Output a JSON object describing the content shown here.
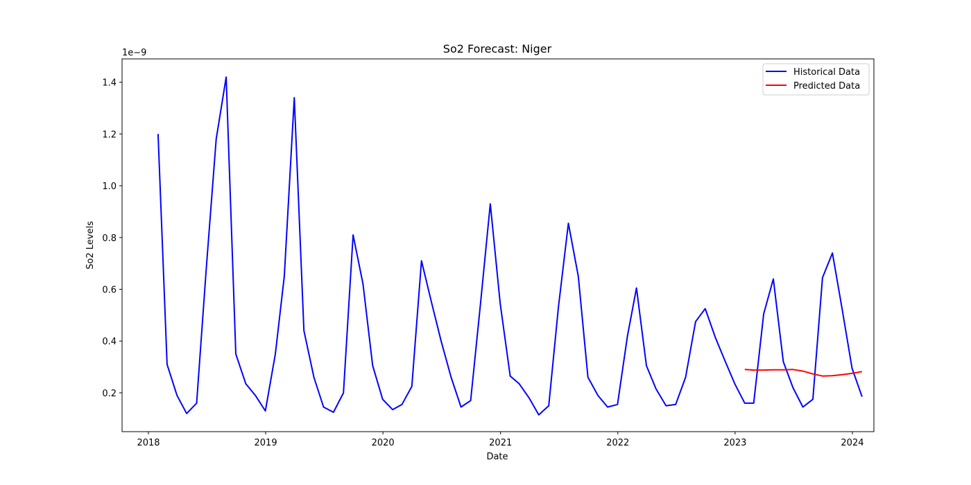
{
  "chart_data": {
    "type": "line",
    "title": "So2 Forecast: Niger",
    "xlabel": "Date",
    "ylabel": "So2 Levels",
    "y_offset_label": "1e−9",
    "x_ticks": [
      "2018",
      "2019",
      "2020",
      "2021",
      "2022",
      "2023",
      "2024"
    ],
    "y_ticks": [
      "0.2",
      "0.4",
      "0.6",
      "0.8",
      "1.0",
      "1.2",
      "1.4"
    ],
    "xlim": [
      "2017-10-11",
      "2024-03-08"
    ],
    "ylim": [
      0.05,
      1.49
    ],
    "y_scale_note": "values in units of 1e-9",
    "grid": false,
    "legend_position": "upper right",
    "series": [
      {
        "name": "Historical Data",
        "color": "#0000ff",
        "points": [
          [
            "2018-01-31",
            1.2
          ],
          [
            "2018-02-28",
            0.31
          ],
          [
            "2018-03-31",
            0.19
          ],
          [
            "2018-04-30",
            0.12
          ],
          [
            "2018-05-31",
            0.16
          ],
          [
            "2018-06-30",
            0.68
          ],
          [
            "2018-07-31",
            1.18
          ],
          [
            "2018-08-31",
            1.42
          ],
          [
            "2018-09-30",
            0.35
          ],
          [
            "2018-10-31",
            0.235
          ],
          [
            "2018-11-30",
            0.19
          ],
          [
            "2018-12-31",
            0.13
          ],
          [
            "2019-01-31",
            0.35
          ],
          [
            "2019-02-28",
            0.65
          ],
          [
            "2019-03-31",
            1.34
          ],
          [
            "2019-04-30",
            0.44
          ],
          [
            "2019-05-31",
            0.26
          ],
          [
            "2019-06-30",
            0.145
          ],
          [
            "2019-07-31",
            0.125
          ],
          [
            "2019-08-31",
            0.2
          ],
          [
            "2019-09-30",
            0.81
          ],
          [
            "2019-10-31",
            0.62
          ],
          [
            "2019-11-30",
            0.305
          ],
          [
            "2019-12-31",
            0.175
          ],
          [
            "2020-01-31",
            0.135
          ],
          [
            "2020-02-29",
            0.155
          ],
          [
            "2020-03-31",
            0.225
          ],
          [
            "2020-04-30",
            0.71
          ],
          [
            "2020-05-31",
            0.55
          ],
          [
            "2020-06-30",
            0.4
          ],
          [
            "2020-07-31",
            0.26
          ],
          [
            "2020-08-31",
            0.145
          ],
          [
            "2020-09-30",
            0.17
          ],
          [
            "2020-10-31",
            0.55
          ],
          [
            "2020-11-30",
            0.93
          ],
          [
            "2020-12-31",
            0.545
          ],
          [
            "2021-01-31",
            0.265
          ],
          [
            "2021-02-28",
            0.235
          ],
          [
            "2021-03-31",
            0.18
          ],
          [
            "2021-04-30",
            0.115
          ],
          [
            "2021-05-31",
            0.15
          ],
          [
            "2021-06-30",
            0.53
          ],
          [
            "2021-07-31",
            0.855
          ],
          [
            "2021-08-31",
            0.65
          ],
          [
            "2021-09-30",
            0.26
          ],
          [
            "2021-10-31",
            0.19
          ],
          [
            "2021-11-30",
            0.145
          ],
          [
            "2021-12-31",
            0.155
          ],
          [
            "2022-01-31",
            0.42
          ],
          [
            "2022-02-28",
            0.605
          ],
          [
            "2022-03-31",
            0.305
          ],
          [
            "2022-04-30",
            0.215
          ],
          [
            "2022-05-31",
            0.15
          ],
          [
            "2022-06-30",
            0.155
          ],
          [
            "2022-07-31",
            0.26
          ],
          [
            "2022-08-31",
            0.475
          ],
          [
            "2022-09-30",
            0.525
          ],
          [
            "2022-10-31",
            0.415
          ],
          [
            "2022-11-30",
            0.325
          ],
          [
            "2022-12-31",
            0.235
          ],
          [
            "2023-01-31",
            0.16
          ],
          [
            "2023-02-28",
            0.16
          ],
          [
            "2023-03-31",
            0.505
          ],
          [
            "2023-04-30",
            0.64
          ],
          [
            "2023-05-31",
            0.32
          ],
          [
            "2023-06-30",
            0.22
          ],
          [
            "2023-07-31",
            0.145
          ],
          [
            "2023-08-31",
            0.175
          ],
          [
            "2023-09-30",
            0.645
          ],
          [
            "2023-10-31",
            0.74
          ],
          [
            "2023-11-30",
            0.525
          ],
          [
            "2023-12-31",
            0.295
          ],
          [
            "2024-01-31",
            0.185
          ]
        ]
      },
      {
        "name": "Predicted Data",
        "color": "#ff0000",
        "points": [
          [
            "2023-01-31",
            0.29
          ],
          [
            "2023-02-28",
            0.288
          ],
          [
            "2023-03-31",
            0.288
          ],
          [
            "2023-04-30",
            0.289
          ],
          [
            "2023-05-31",
            0.289
          ],
          [
            "2023-06-30",
            0.29
          ],
          [
            "2023-07-31",
            0.284
          ],
          [
            "2023-08-31",
            0.273
          ],
          [
            "2023-09-30",
            0.265
          ],
          [
            "2023-10-31",
            0.266
          ],
          [
            "2023-11-30",
            0.27
          ],
          [
            "2023-12-31",
            0.275
          ],
          [
            "2024-01-31",
            0.282
          ]
        ]
      }
    ]
  }
}
